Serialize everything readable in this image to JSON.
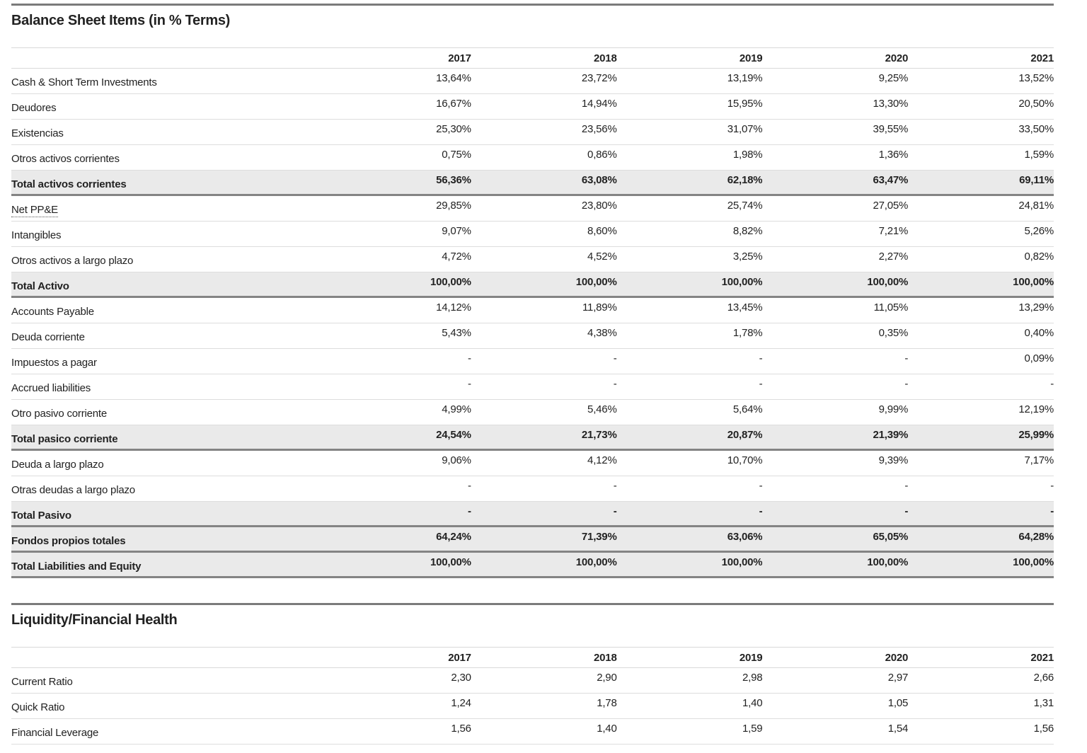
{
  "colors": {
    "page_background": "#ffffff",
    "text": "#222222",
    "total_row_shading": "#eaeaea",
    "divider_dark": "#7b7b7b",
    "divider_light": "#d9d9d9",
    "total_row_border": "#848484"
  },
  "tables": [
    {
      "id": "balance-sheet",
      "title": "Balance Sheet Items (in % Terms)",
      "years": [
        "2017",
        "2018",
        "2019",
        "2020",
        "2021"
      ],
      "rows": [
        {
          "label": "Cash & Short Term Investments",
          "values": [
            "13,64%",
            "23,72%",
            "13,19%",
            "9,25%",
            "13,52%"
          ],
          "style": "normal"
        },
        {
          "label": "Deudores",
          "values": [
            "16,67%",
            "14,94%",
            "15,95%",
            "13,30%",
            "20,50%"
          ],
          "style": "normal"
        },
        {
          "label": "Existencias",
          "values": [
            "25,30%",
            "23,56%",
            "31,07%",
            "39,55%",
            "33,50%"
          ],
          "style": "normal"
        },
        {
          "label": "Otros activos corrientes",
          "values": [
            "0,75%",
            "0,86%",
            "1,98%",
            "1,36%",
            "1,59%"
          ],
          "style": "normal"
        },
        {
          "label": "Total activos corrientes",
          "values": [
            "56,36%",
            "63,08%",
            "62,18%",
            "63,47%",
            "69,11%"
          ],
          "style": "total"
        },
        {
          "label": "Net PP&E",
          "values": [
            "29,85%",
            "23,80%",
            "25,74%",
            "27,05%",
            "24,81%"
          ],
          "style": "normal",
          "tooltip": true
        },
        {
          "label": "Intangibles",
          "values": [
            "9,07%",
            "8,60%",
            "8,82%",
            "7,21%",
            "5,26%"
          ],
          "style": "normal"
        },
        {
          "label": "Otros activos a largo plazo",
          "values": [
            "4,72%",
            "4,52%",
            "3,25%",
            "2,27%",
            "0,82%"
          ],
          "style": "normal"
        },
        {
          "label": "Total Activo",
          "values": [
            "100,00%",
            "100,00%",
            "100,00%",
            "100,00%",
            "100,00%"
          ],
          "style": "total"
        },
        {
          "label": "Accounts Payable",
          "values": [
            "14,12%",
            "11,89%",
            "13,45%",
            "11,05%",
            "13,29%"
          ],
          "style": "normal"
        },
        {
          "label": "Deuda corriente",
          "values": [
            "5,43%",
            "4,38%",
            "1,78%",
            "0,35%",
            "0,40%"
          ],
          "style": "normal"
        },
        {
          "label": "Impuestos a pagar",
          "values": [
            "-",
            "-",
            "-",
            "-",
            "0,09%"
          ],
          "style": "normal"
        },
        {
          "label": "Accrued liabilities",
          "values": [
            "-",
            "-",
            "-",
            "-",
            "-"
          ],
          "style": "normal"
        },
        {
          "label": "Otro pasivo corriente",
          "values": [
            "4,99%",
            "5,46%",
            "5,64%",
            "9,99%",
            "12,19%"
          ],
          "style": "normal"
        },
        {
          "label": "Total pasico corriente",
          "values": [
            "24,54%",
            "21,73%",
            "20,87%",
            "21,39%",
            "25,99%"
          ],
          "style": "total"
        },
        {
          "label": "Deuda a largo plazo",
          "values": [
            "9,06%",
            "4,12%",
            "10,70%",
            "9,39%",
            "7,17%"
          ],
          "style": "normal"
        },
        {
          "label": "Otras deudas a largo plazo",
          "values": [
            "-",
            "-",
            "-",
            "-",
            "-"
          ],
          "style": "normal"
        },
        {
          "label": "Total Pasivo",
          "values": [
            "-",
            "-",
            "-",
            "-",
            "-"
          ],
          "style": "total"
        },
        {
          "label": "Fondos propios totales",
          "values": [
            "64,24%",
            "71,39%",
            "63,06%",
            "65,05%",
            "64,28%"
          ],
          "style": "total"
        },
        {
          "label": "Total Liabilities and Equity",
          "values": [
            "100,00%",
            "100,00%",
            "100,00%",
            "100,00%",
            "100,00%"
          ],
          "style": "total"
        }
      ]
    },
    {
      "id": "liquidity",
      "title": "Liquidity/Financial Health",
      "years": [
        "2017",
        "2018",
        "2019",
        "2020",
        "2021"
      ],
      "rows": [
        {
          "label": "Current Ratio",
          "values": [
            "2,30",
            "2,90",
            "2,98",
            "2,97",
            "2,66"
          ],
          "style": "normal"
        },
        {
          "label": "Quick Ratio",
          "values": [
            "1,24",
            "1,78",
            "1,40",
            "1,05",
            "1,31"
          ],
          "style": "normal"
        },
        {
          "label": "Financial Leverage",
          "values": [
            "1,56",
            "1,40",
            "1,59",
            "1,54",
            "1,56"
          ],
          "style": "normal"
        }
      ]
    }
  ]
}
